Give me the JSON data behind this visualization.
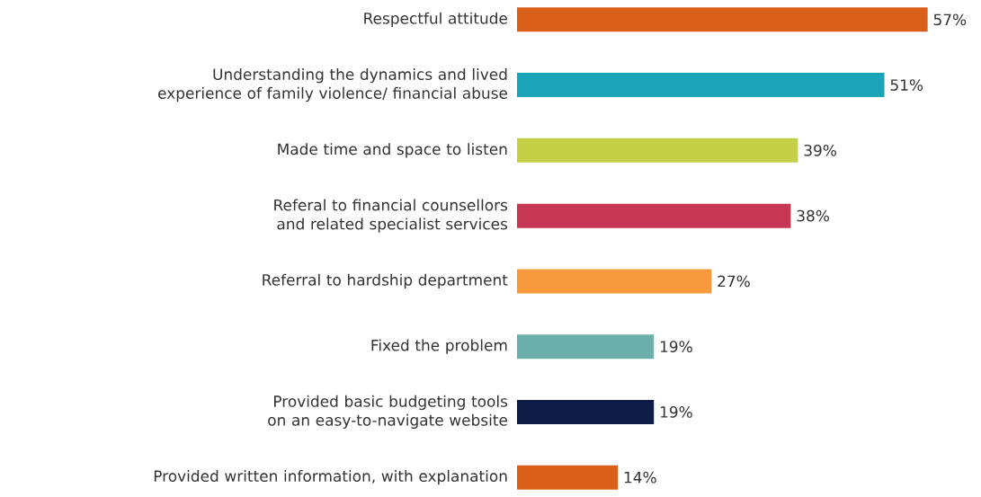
{
  "chart_data": {
    "type": "bar",
    "orientation": "horizontal",
    "categories": [
      "Respectful attitude",
      "Understanding the dynamics and lived experience of family violence/ financial abuse",
      "Made time and space to listen",
      "Referal to financial counsellors and related specialist services",
      "Referral to hardship department",
      "Fixed the problem",
      "Provided basic budgeting tools on an easy-to-navigate website",
      "Provided written information, with explanation"
    ],
    "values": [
      57,
      51,
      39,
      38,
      27,
      19,
      19,
      14
    ],
    "value_labels": [
      "57%",
      "51%",
      "39%",
      "38%",
      "27%",
      "19%",
      "19%",
      "14%"
    ],
    "colors": [
      "#d95f1a",
      "#1ba3b8",
      "#c3cf45",
      "#c53752",
      "#f79a3e",
      "#6aafa9",
      "#0e1b45",
      "#d95f1a"
    ]
  }
}
